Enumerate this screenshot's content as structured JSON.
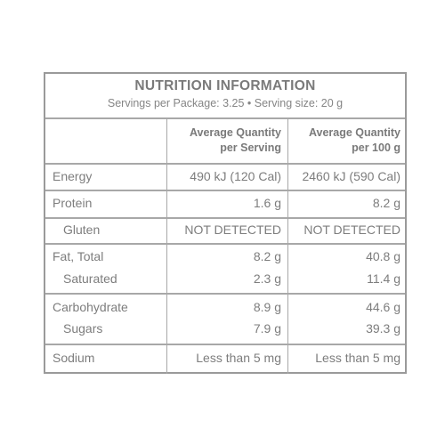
{
  "panel": {
    "title": "NUTRITION INFORMATION",
    "subtitle": "Servings per Package: 3.25 • Serving size: 20 g",
    "headers": {
      "per_serving_line1": "Average Quantity",
      "per_serving_line2": "per Serving",
      "per_100g_line1": "Average Quantity",
      "per_100g_line2": "per 100 g"
    },
    "rows": {
      "energy": {
        "label": "Energy",
        "per_serving": "490 kJ (120 Cal)",
        "per_100g": "2460 kJ (590 Cal)"
      },
      "protein": {
        "label": "Protein",
        "per_serving": "1.6 g",
        "per_100g": "8.2 g"
      },
      "gluten": {
        "label": "Gluten",
        "per_serving": "NOT DETECTED",
        "per_100g": "NOT DETECTED"
      },
      "fat_total": {
        "label": "Fat, Total",
        "per_serving": "8.2 g",
        "per_100g": "40.8 g"
      },
      "saturated": {
        "label": "Saturated",
        "per_serving": "2.3 g",
        "per_100g": "11.4 g"
      },
      "carbohydrate": {
        "label": "Carbohydrate",
        "per_serving": "8.9 g",
        "per_100g": "44.6 g"
      },
      "sugars": {
        "label": "Sugars",
        "per_serving": "7.9 g",
        "per_100g": "39.3 g"
      },
      "sodium": {
        "label": "Sodium",
        "per_serving": "Less than 5 mg",
        "per_100g": "Less than 5 mg"
      }
    }
  },
  "colors": {
    "border": "#9a9a9a",
    "text": "#7d7d7d"
  }
}
